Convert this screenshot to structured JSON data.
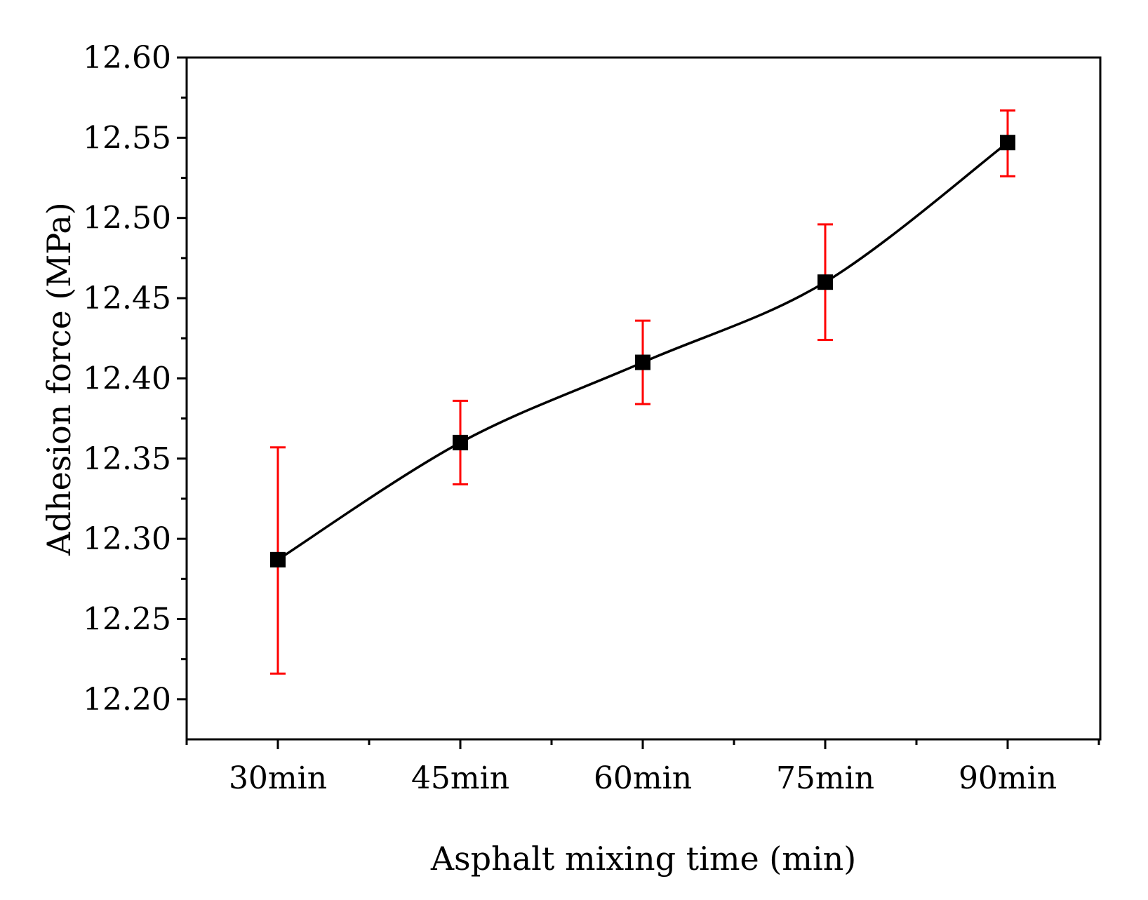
{
  "chart_data": {
    "type": "line",
    "title": "",
    "xlabel": "Asphalt mixing time (min)",
    "ylabel": "Adhesion force (MPa)",
    "categories": [
      "30min",
      "45min",
      "60min",
      "75min",
      "90min"
    ],
    "series": [
      {
        "name": "Adhesion force",
        "values": [
          12.287,
          12.36,
          12.41,
          12.46,
          12.547
        ],
        "error_low": [
          12.216,
          12.334,
          12.384,
          12.424,
          12.526
        ],
        "error_high": [
          12.357,
          12.386,
          12.436,
          12.496,
          12.567
        ],
        "line_color": "#000000",
        "marker": "square",
        "marker_color": "#000000",
        "error_color": "#ff0000"
      }
    ],
    "ylim": [
      12.175,
      12.6
    ],
    "yticks": [
      "12.20",
      "12.25",
      "12.30",
      "12.35",
      "12.40",
      "12.45",
      "12.50",
      "12.55",
      "12.60"
    ],
    "grid": false,
    "legend": "none"
  }
}
